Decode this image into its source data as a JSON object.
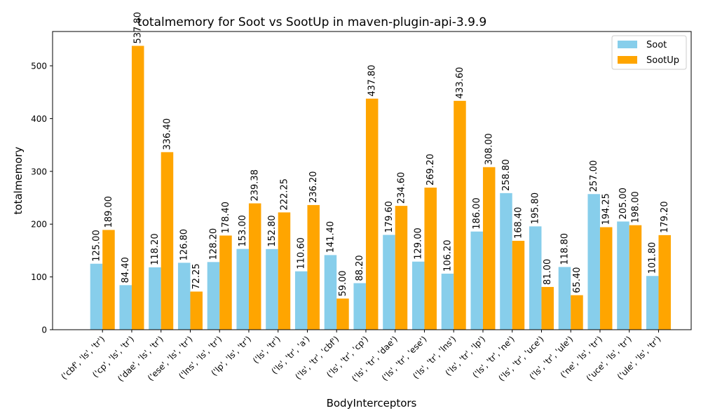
{
  "chart_data": {
    "type": "bar",
    "title": "totalmemory for Soot vs SootUp in maven-plugin-api-3.9.9",
    "xlabel": "BodyInterceptors",
    "ylabel": "totalmemory",
    "ylim": [
      0,
      565
    ],
    "yticks": [
      0,
      100,
      200,
      300,
      400,
      500
    ],
    "grid": false,
    "legend_position": "top-right",
    "categories": [
      "('cbf', 'ls', 'tr')",
      "('cp', 'ls', 'tr')",
      "('dae', 'ls', 'tr')",
      "('ese', 'ls', 'tr')",
      "('lns', 'ls', 'tr')",
      "('lp', 'ls', 'tr')",
      "('ls', 'tr')",
      "('ls', 'tr', 'a')",
      "('ls', 'tr', 'cbf')",
      "('ls', 'tr', 'cp')",
      "('ls', 'tr', 'dae')",
      "('ls', 'tr', 'ese')",
      "('ls', 'tr', 'lns')",
      "('ls', 'tr', 'lp')",
      "('ls', 'tr', 'ne')",
      "('ls', 'tr', 'uce')",
      "('ls', 'tr', 'ule')",
      "('ne', 'ls', 'tr')",
      "('uce', 'ls', 'tr')",
      "('ule', 'ls', 'tr')"
    ],
    "series": [
      {
        "name": "Soot",
        "color": "#87ceeb",
        "values": [
          125.0,
          84.4,
          118.2,
          126.8,
          128.2,
          153.0,
          152.8,
          110.6,
          141.4,
          88.2,
          179.6,
          129.0,
          106.2,
          186.0,
          258.8,
          195.8,
          118.8,
          257.0,
          205.0,
          101.8
        ],
        "labels": [
          "125.00",
          "84.40",
          "118.20",
          "126.80",
          "128.20",
          "153.00",
          "152.80",
          "110.60",
          "141.40",
          "88.20",
          "179.60",
          "129.00",
          "106.20",
          "186.00",
          "258.80",
          "195.80",
          "118.80",
          "257.00",
          "205.00",
          "101.80"
        ]
      },
      {
        "name": "SootUp",
        "color": "#ffa500",
        "values": [
          189.0,
          537.8,
          336.4,
          72.25,
          178.4,
          239.38,
          222.25,
          236.2,
          59.0,
          437.8,
          234.6,
          269.2,
          433.6,
          308.0,
          168.4,
          81.0,
          65.4,
          194.25,
          198.0,
          179.2
        ],
        "labels": [
          "189.00",
          "537.80",
          "336.40",
          "72.25",
          "178.40",
          "239.38",
          "222.25",
          "236.20",
          "59.00",
          "437.80",
          "234.60",
          "269.20",
          "433.60",
          "308.00",
          "168.40",
          "81.00",
          "65.40",
          "194.25",
          "198.00",
          "179.20"
        ]
      }
    ]
  }
}
